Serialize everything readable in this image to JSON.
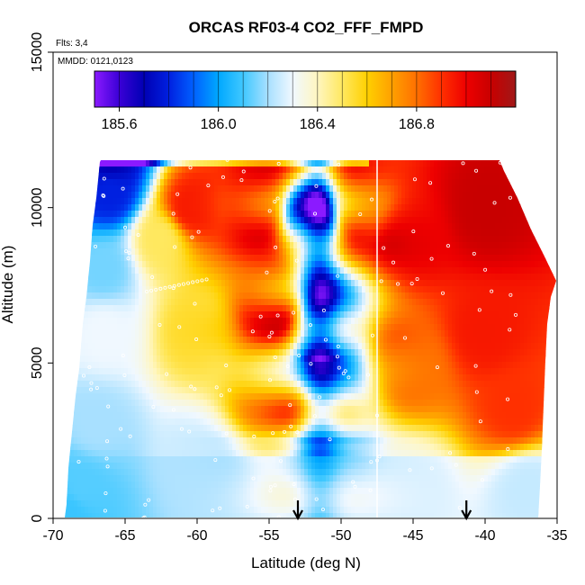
{
  "chart_data": {
    "type": "heatmap",
    "title": "ORCAS RF03-4 CO2_FFF_FMPD",
    "xlabel": "Latitude (deg N)",
    "ylabel": "Altitude (m)",
    "xlim": [
      -70,
      -35
    ],
    "ylim": [
      0,
      15000
    ],
    "x_ticks": [
      -70,
      -65,
      -60,
      -55,
      -50,
      -45,
      -40,
      -35
    ],
    "y_ticks": [
      0,
      5000,
      10000,
      15000
    ],
    "x_tick_labels": [
      "-70",
      "-65",
      "-60",
      "-55",
      "-50",
      "-45",
      "-40",
      "-35"
    ],
    "y_tick_labels": [
      "0",
      "5000",
      "10000",
      "15000"
    ],
    "flights_note": "Flts: 3,4",
    "dates_note": "MMDD: 0121,0123",
    "colorbar": {
      "min": 185.5,
      "max": 187.2,
      "tick_values": [
        185.6,
        186.0,
        186.4,
        186.8
      ],
      "tick_labels": [
        "185.6",
        "186.0",
        "186.4",
        "186.8"
      ],
      "colors": [
        "#8b1aff",
        "#3a00d6",
        "#0000b4",
        "#0020e0",
        "#0060ff",
        "#00a8ff",
        "#40c8ff",
        "#a8e0ff",
        "#f0f8ff",
        "#fff6c0",
        "#ffe860",
        "#ffd000",
        "#ffa000",
        "#ff7000",
        "#ff3000",
        "#ee0000",
        "#c80000",
        "#a01818"
      ]
    },
    "arrows_latitude": [
      -53,
      -41.3
    ],
    "curtain_points": [
      {
        "lat": -69.0,
        "alt": 200,
        "value": 186.05
      },
      {
        "lat": -68.0,
        "alt": 1000,
        "value": 186.1
      },
      {
        "lat": -67.0,
        "alt": 3000,
        "value": 186.2
      },
      {
        "lat": -66.5,
        "alt": 6000,
        "value": 186.3
      },
      {
        "lat": -66.5,
        "alt": 8000,
        "value": 186.15
      },
      {
        "lat": -66.0,
        "alt": 10500,
        "value": 185.8
      },
      {
        "lat": -66.0,
        "alt": 11500,
        "value": 185.7
      },
      {
        "lat": -62.5,
        "alt": 9000,
        "value": 186.5
      },
      {
        "lat": -60.5,
        "alt": 10000,
        "value": 186.95
      },
      {
        "lat": -60.0,
        "alt": 6000,
        "value": 186.55
      },
      {
        "lat": -60.0,
        "alt": 2000,
        "value": 186.25
      },
      {
        "lat": -56.0,
        "alt": 10000,
        "value": 186.95
      },
      {
        "lat": -55.0,
        "alt": 7000,
        "value": 186.9
      },
      {
        "lat": -55.0,
        "alt": 4000,
        "value": 186.65
      },
      {
        "lat": -52.0,
        "alt": 9500,
        "value": 186.1
      },
      {
        "lat": -51.0,
        "alt": 6000,
        "value": 186.1
      },
      {
        "lat": -50.0,
        "alt": 3000,
        "value": 186.25
      },
      {
        "lat": -49.0,
        "alt": 10000,
        "value": 186.85
      },
      {
        "lat": -45.0,
        "alt": 9000,
        "value": 187.0
      },
      {
        "lat": -45.0,
        "alt": 5000,
        "value": 186.8
      },
      {
        "lat": -45.0,
        "alt": 1000,
        "value": 186.35
      },
      {
        "lat": -40.0,
        "alt": 10000,
        "value": 187.1
      },
      {
        "lat": -40.0,
        "alt": 6000,
        "value": 186.95
      },
      {
        "lat": -38.0,
        "alt": 3500,
        "value": 186.9
      },
      {
        "lat": -37.0,
        "alt": 1000,
        "value": 186.3
      }
    ]
  }
}
